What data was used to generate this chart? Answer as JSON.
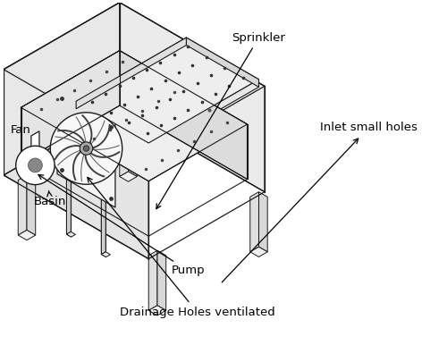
{
  "background_color": "#ffffff",
  "line_color": "#1a1a1a",
  "labels": {
    "fan": "Fan",
    "sprinkler": "Sprinkler",
    "inlet_small_holes": "Inlet small holes",
    "basin": "Basin",
    "pump": "Pump",
    "drainage": "Drainage Holes ventilated"
  },
  "figsize": [
    5.0,
    3.86
  ],
  "dpi": 100
}
